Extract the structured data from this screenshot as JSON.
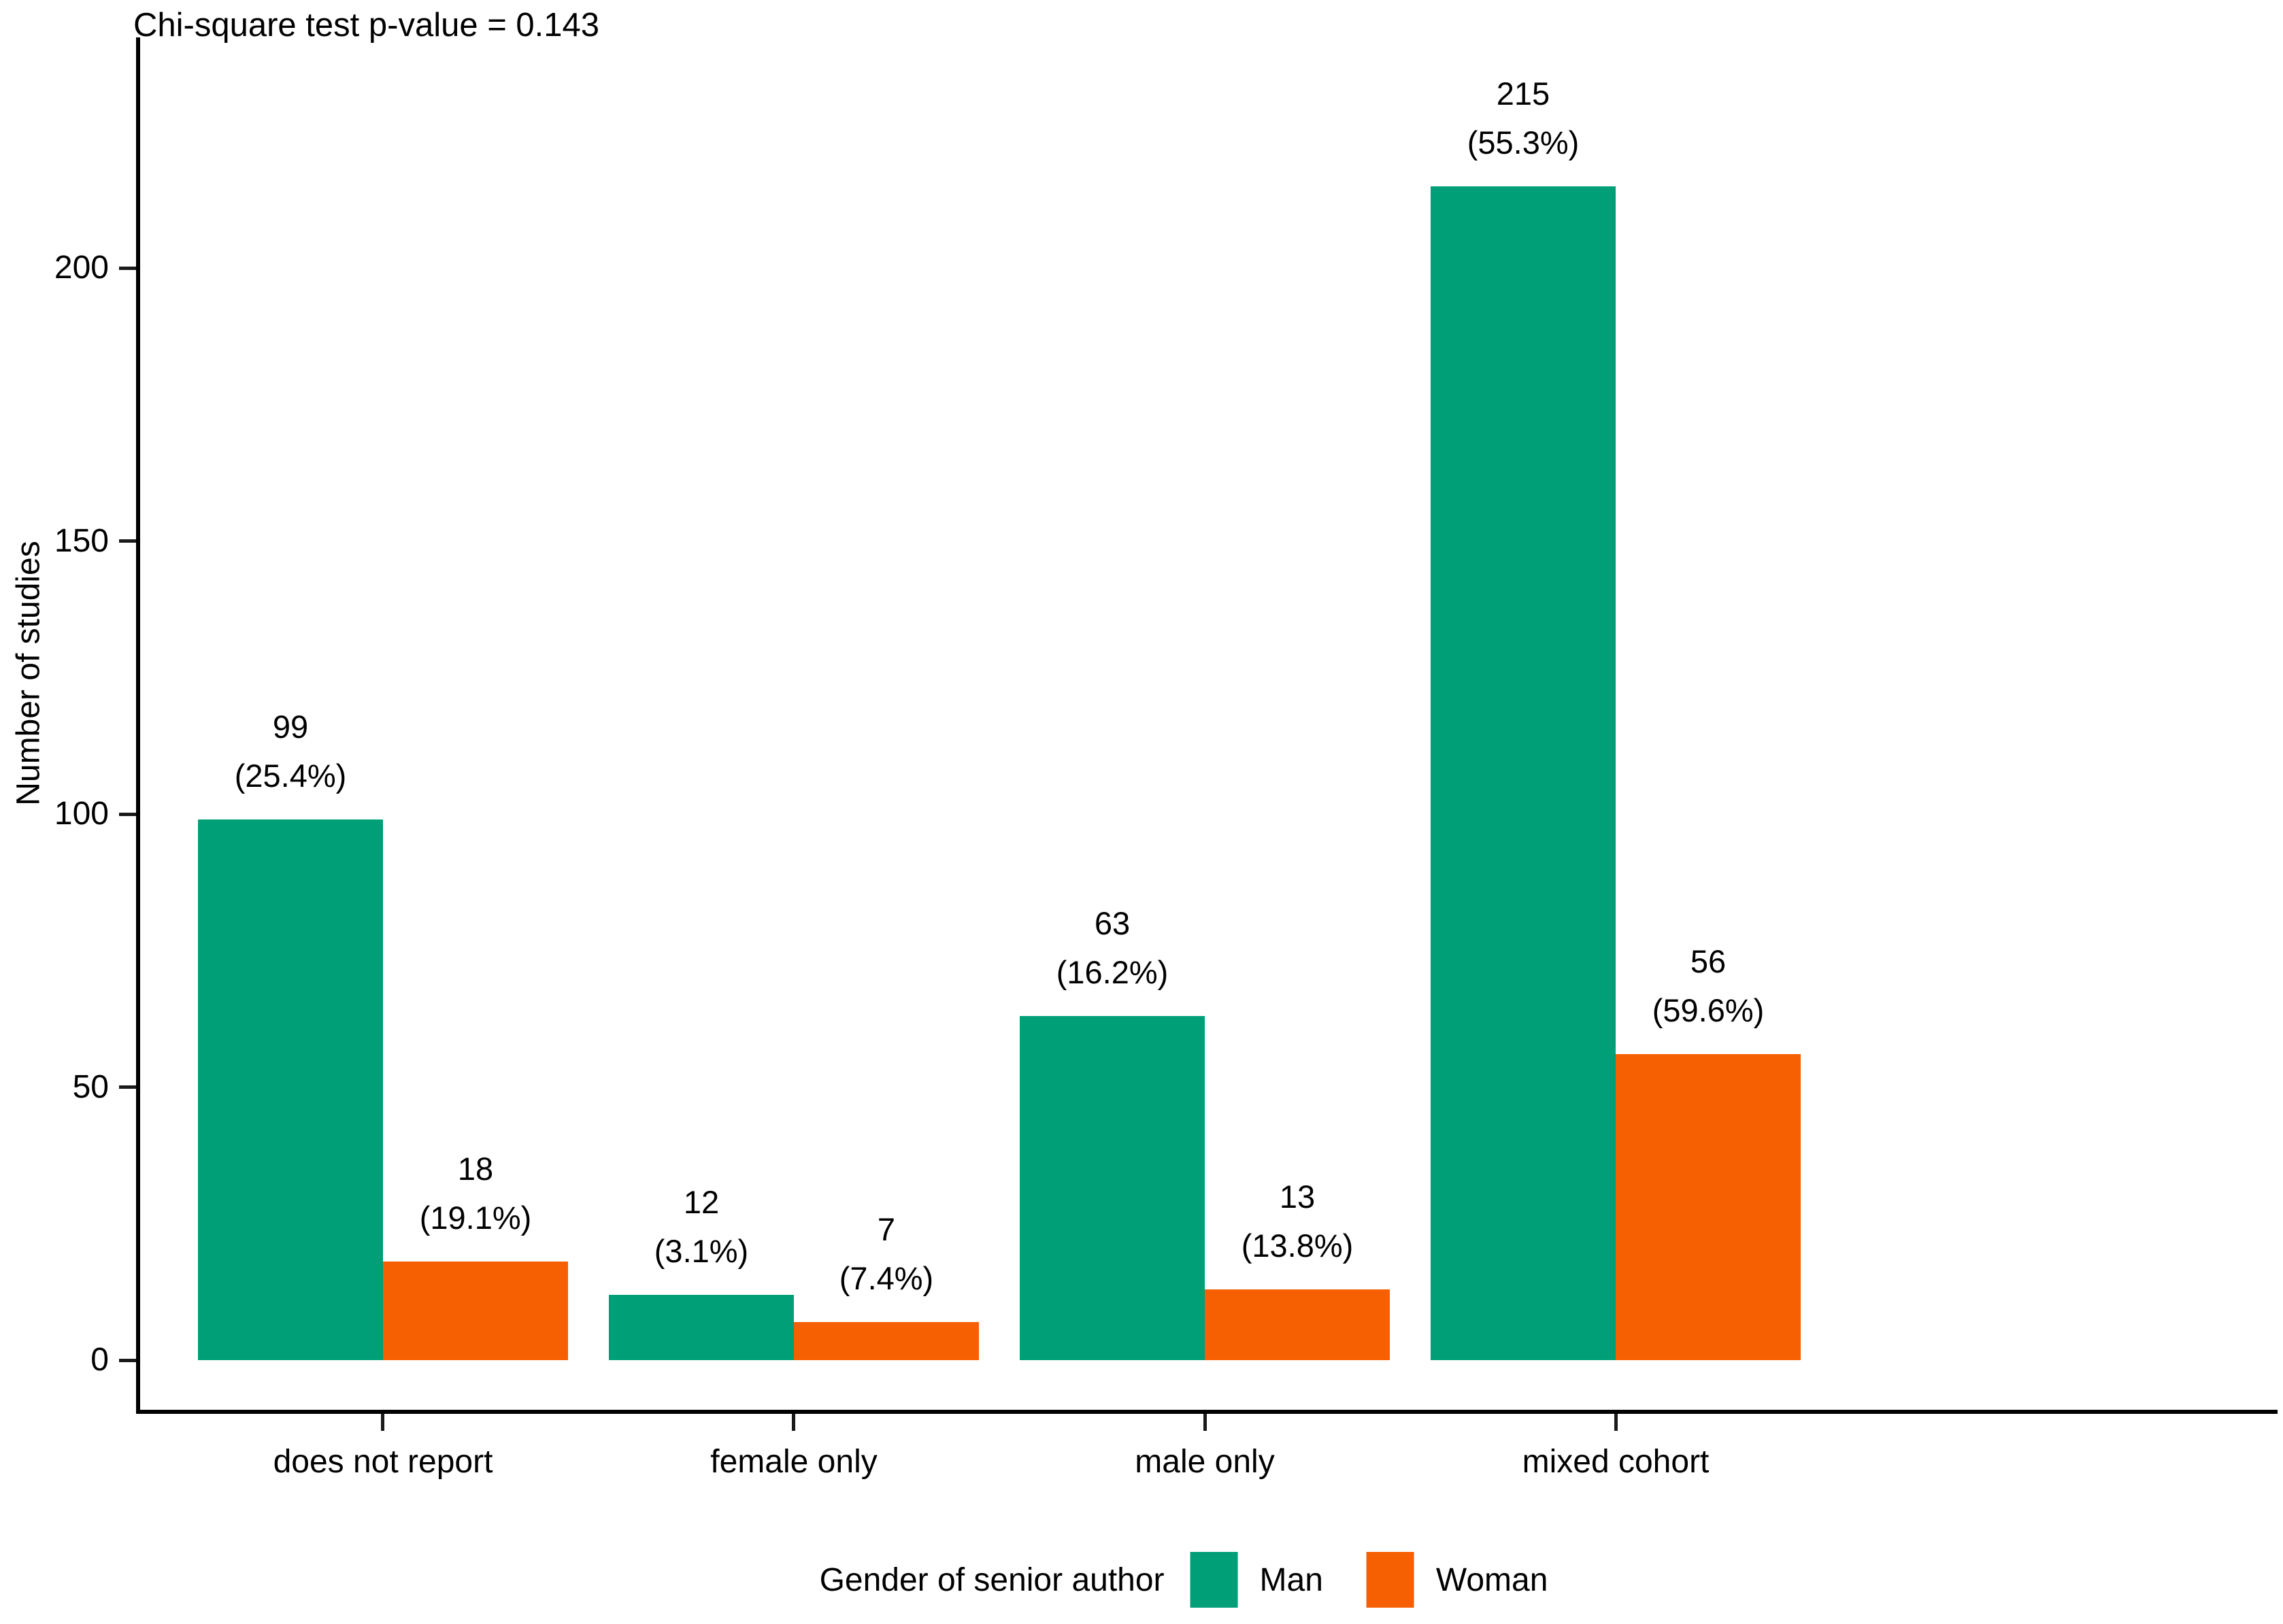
{
  "chart_data": {
    "type": "bar",
    "title": "Chi-square test p-value = 0.143",
    "xlabel": "",
    "ylabel": "Number of studies",
    "categories": [
      "does not report",
      "female only",
      "male only",
      "mixed cohort"
    ],
    "series": [
      {
        "name": "Man",
        "color": "#009F77",
        "values": [
          99,
          12,
          63,
          215
        ],
        "percent_labels": [
          "(25.4%)",
          "(3.1%)",
          "(16.2%)",
          "(55.3%)"
        ]
      },
      {
        "name": "Woman",
        "color": "#F75F03",
        "values": [
          18,
          7,
          13,
          56
        ],
        "percent_labels": [
          "(19.1%)",
          "(7.4%)",
          "(13.8%)",
          "(59.6%)"
        ]
      }
    ],
    "y_ticks": [
      0,
      50,
      100,
      150,
      200
    ],
    "ylim": [
      0,
      232
    ],
    "grid": false,
    "legend": {
      "title": "Gender of senior author",
      "position": "bottom"
    }
  },
  "colors": {
    "axis": "#000000",
    "text": "#000000",
    "background": "#FFFFFF"
  }
}
